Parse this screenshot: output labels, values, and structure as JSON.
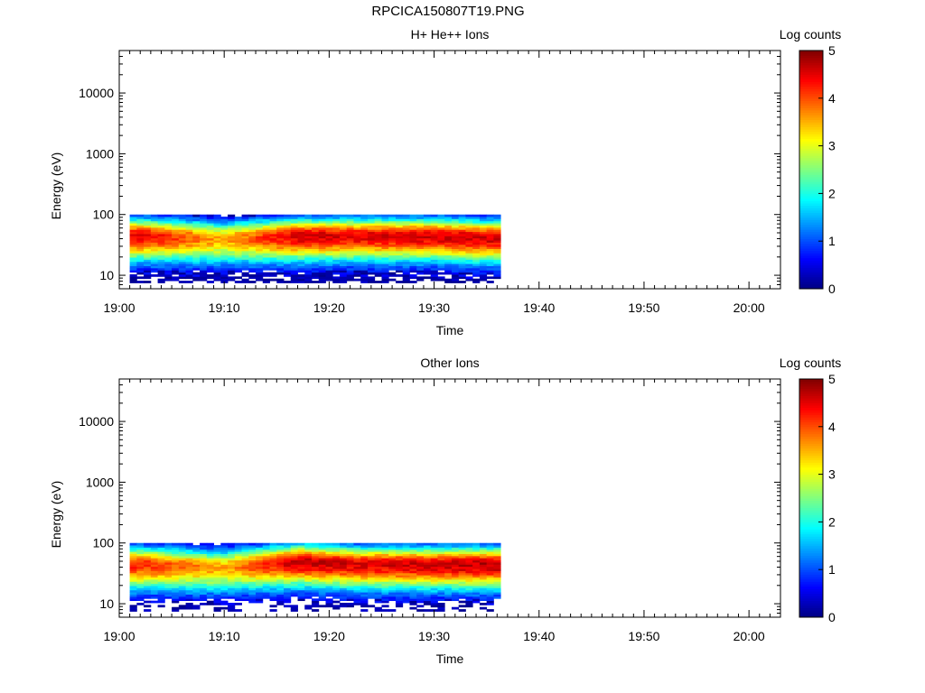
{
  "page_title": "RPCICA150807T19.PNG",
  "chart_data": [
    {
      "type": "heatmap",
      "title": "H+ He++ Ions",
      "xlabel": "Time",
      "ylabel": "Energy (eV)",
      "colorbar_label": "Log counts",
      "colorbar_range": [
        0,
        5
      ],
      "colorbar_ticks": [
        0,
        1,
        2,
        3,
        4,
        5
      ],
      "x_range": [
        "19:00",
        "20:03"
      ],
      "x_ticks": [
        "19:00",
        "19:10",
        "19:20",
        "19:30",
        "19:40",
        "19:50",
        "20:00"
      ],
      "y_scale": "log",
      "y_range": [
        6,
        50000
      ],
      "y_ticks": [
        10,
        100,
        1000,
        10000
      ],
      "data_time_range": [
        "19:01",
        "19:36"
      ],
      "peak_energy_profile": [
        {
          "time": "19:02",
          "energy": 45,
          "log_counts": 4.5
        },
        {
          "time": "19:10",
          "energy": 40,
          "log_counts": 3.5
        },
        {
          "time": "19:17",
          "energy": 45,
          "log_counts": 4.6
        },
        {
          "time": "19:23",
          "energy": 45,
          "log_counts": 4.5
        },
        {
          "time": "19:30",
          "energy": 45,
          "log_counts": 4.6
        },
        {
          "time": "19:35",
          "energy": 42,
          "log_counts": 4.6
        }
      ]
    },
    {
      "type": "heatmap",
      "title": "Other Ions",
      "xlabel": "Time",
      "ylabel": "Energy (eV)",
      "colorbar_label": "Log counts",
      "colorbar_range": [
        0,
        5
      ],
      "colorbar_ticks": [
        0,
        1,
        2,
        3,
        4,
        5
      ],
      "x_range": [
        "19:00",
        "20:03"
      ],
      "x_ticks": [
        "19:00",
        "19:10",
        "19:20",
        "19:30",
        "19:40",
        "19:50",
        "20:00"
      ],
      "y_scale": "log",
      "y_range": [
        6,
        50000
      ],
      "y_ticks": [
        10,
        100,
        1000,
        10000
      ],
      "data_time_range": [
        "19:01",
        "19:36"
      ],
      "peak_energy_profile": [
        {
          "time": "19:02",
          "energy": 45,
          "log_counts": 4.2
        },
        {
          "time": "19:10",
          "energy": 40,
          "log_counts": 3.5
        },
        {
          "time": "19:17",
          "energy": 50,
          "log_counts": 4.7
        },
        {
          "time": "19:23",
          "energy": 45,
          "log_counts": 4.5
        },
        {
          "time": "19:30",
          "energy": 45,
          "log_counts": 4.6
        },
        {
          "time": "19:35",
          "energy": 45,
          "log_counts": 4.7
        }
      ]
    }
  ]
}
